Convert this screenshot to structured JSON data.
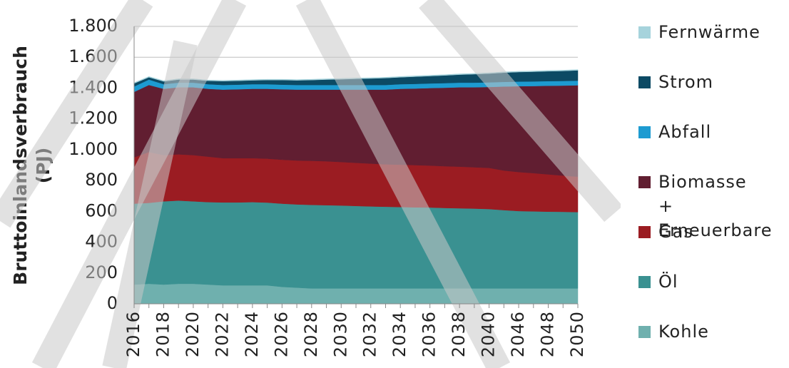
{
  "chart_data": {
    "type": "stacked-area",
    "ylabel": [
      "Bruttoinlandsverbrauch",
      "(PJ)"
    ],
    "categories": [
      "2016",
      null,
      "2018",
      null,
      "2020",
      null,
      "2022",
      null,
      "2024",
      null,
      "2026",
      null,
      "2028",
      null,
      "2030",
      null,
      "2032",
      null,
      "2034",
      null,
      "2036",
      null,
      "2038",
      null,
      "2040",
      null,
      "2046",
      null,
      "2048",
      null,
      "2050"
    ],
    "ylim": [
      0,
      1800
    ],
    "yticks": [
      0,
      200,
      400,
      600,
      800,
      {
        "value": 1000,
        "label": "1.000"
      },
      {
        "value": 1200,
        "label": "1.200"
      },
      {
        "value": 1400,
        "label": "1.400"
      },
      {
        "value": 1600,
        "label": "1.600"
      },
      {
        "value": 1800,
        "label": "1.800"
      }
    ],
    "grid": true,
    "legend": "right",
    "series": [
      {
        "name": "Kohle",
        "color": "#6fb0ae",
        "values": [
          125,
          130,
          125,
          130,
          130,
          125,
          120,
          120,
          120,
          120,
          110,
          105,
          100,
          100,
          100,
          100,
          100,
          100,
          100,
          100,
          100,
          100,
          100,
          100,
          100,
          100,
          100,
          100,
          100,
          100,
          100
        ]
      },
      {
        "name": "Öl",
        "color": "#3a9191",
        "values": [
          525,
          525,
          540,
          540,
          535,
          535,
          538,
          538,
          540,
          537,
          540,
          540,
          542,
          540,
          538,
          535,
          532,
          530,
          528,
          526,
          525,
          522,
          520,
          518,
          515,
          508,
          502,
          500,
          498,
          497,
          495
        ]
      },
      {
        "name": "Gas",
        "color": "#9b1c22",
        "values": [
          300,
          330,
          300,
          300,
          300,
          295,
          287,
          287,
          285,
          285,
          285,
          285,
          286,
          285,
          282,
          280,
          278,
          275,
          275,
          274,
          272,
          271,
          270,
          268,
          267,
          257,
          253,
          248,
          242,
          235,
          230
        ]
      },
      {
        "name": "Biomasse + Erneuerbare",
        "color": "#611e31",
        "values": [
          425,
          435,
          430,
          435,
          440,
          440,
          445,
          447,
          450,
          453,
          457,
          460,
          462,
          465,
          470,
          475,
          480,
          485,
          492,
          497,
          503,
          509,
          515,
          519,
          525,
          545,
          557,
          565,
          575,
          584,
          593
        ]
      },
      {
        "name": "Abfall",
        "color": "#1d9bd1",
        "values": [
          35,
          35,
          30,
          30,
          30,
          30,
          30,
          30,
          30,
          30,
          30,
          30,
          30,
          30,
          30,
          30,
          30,
          30,
          30,
          30,
          30,
          30,
          30,
          30,
          30,
          30,
          30,
          30,
          30,
          30,
          30
        ]
      },
      {
        "name": "Strom",
        "color": "#0c4a64",
        "values": [
          20,
          15,
          18,
          20,
          20,
          22,
          25,
          25,
          25,
          27,
          30,
          30,
          32,
          35,
          37,
          40,
          42,
          45,
          45,
          47,
          48,
          50,
          52,
          55,
          57,
          60,
          62,
          63,
          64,
          65,
          67
        ]
      },
      {
        "name": "Fernwärme",
        "color": "#a6d3dc",
        "values": [
          5,
          5,
          5,
          5,
          5,
          5,
          5,
          5,
          5,
          5,
          5,
          5,
          5,
          5,
          5,
          5,
          5,
          5,
          5,
          5,
          5,
          5,
          5,
          5,
          5,
          5,
          5,
          5,
          5,
          5,
          5
        ]
      }
    ]
  }
}
